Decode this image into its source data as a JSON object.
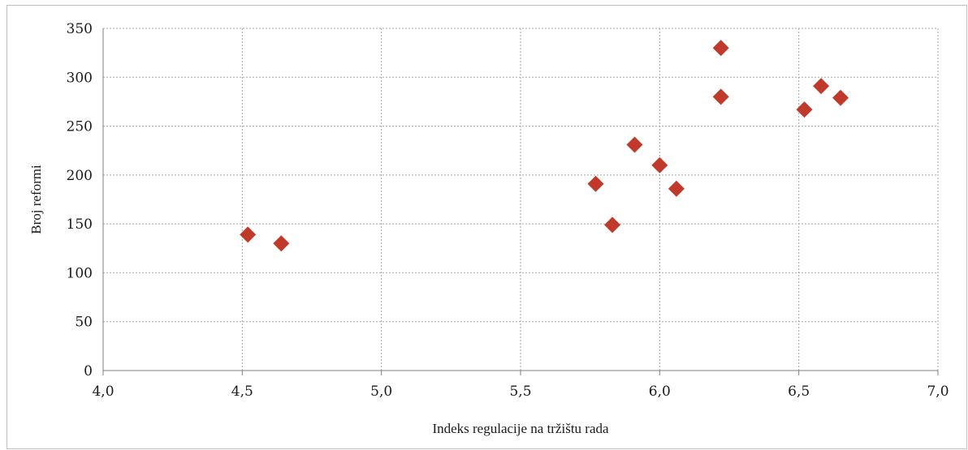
{
  "chart_data": {
    "type": "scatter",
    "title": "",
    "xlabel": "Indeks regulacije na tržištu rada",
    "ylabel": "Broj reformi",
    "xlim": [
      4.0,
      7.0
    ],
    "ylim": [
      0,
      350
    ],
    "xticks": [
      "4,0",
      "4,5",
      "5,0",
      "5,5",
      "6,0",
      "6,5",
      "7,0"
    ],
    "yticks": [
      "0",
      "50",
      "100",
      "150",
      "200",
      "250",
      "300",
      "350"
    ],
    "grid": true,
    "marker": "diamond",
    "marker_color": "#c0392b",
    "points": [
      {
        "x": 4.52,
        "y": 139
      },
      {
        "x": 4.64,
        "y": 130
      },
      {
        "x": 5.77,
        "y": 191
      },
      {
        "x": 5.83,
        "y": 149
      },
      {
        "x": 5.91,
        "y": 231
      },
      {
        "x": 6.0,
        "y": 210
      },
      {
        "x": 6.06,
        "y": 186
      },
      {
        "x": 6.22,
        "y": 330
      },
      {
        "x": 6.22,
        "y": 280
      },
      {
        "x": 6.52,
        "y": 267
      },
      {
        "x": 6.58,
        "y": 291
      },
      {
        "x": 6.65,
        "y": 279
      }
    ]
  }
}
